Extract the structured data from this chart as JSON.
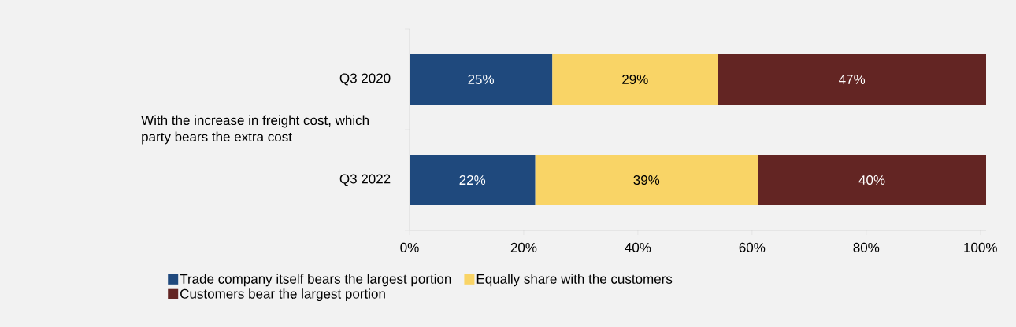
{
  "chart_data": {
    "type": "bar",
    "orientation": "horizontal",
    "stacked": true,
    "ylabel": "With the increase in freight cost, which party bears the extra cost",
    "categories": [
      "Q3 2020",
      "Q3 2022"
    ],
    "series": [
      {
        "name": "Trade company itself bears the largest portion",
        "color": "#1f497d",
        "values": [
          25,
          22
        ],
        "value_labels": [
          "25%",
          "22%"
        ]
      },
      {
        "name": "Equally share with the customers",
        "color": "#f9d466",
        "values": [
          29,
          39
        ],
        "value_labels": [
          "29%",
          "39%"
        ]
      },
      {
        "name": "Customers bear the largest portion",
        "color": "#632523",
        "values": [
          47,
          40
        ],
        "value_labels": [
          "47%",
          "40%"
        ]
      }
    ],
    "xlim": [
      0,
      101
    ],
    "xticks": [
      {
        "value": 0,
        "label": "0%"
      },
      {
        "value": 20,
        "label": "20%"
      },
      {
        "value": 40,
        "label": "40%"
      },
      {
        "value": 60,
        "label": "60%"
      },
      {
        "value": 80,
        "label": "80%"
      },
      {
        "value": 100,
        "label": "100%"
      }
    ],
    "legend": "bottom"
  }
}
